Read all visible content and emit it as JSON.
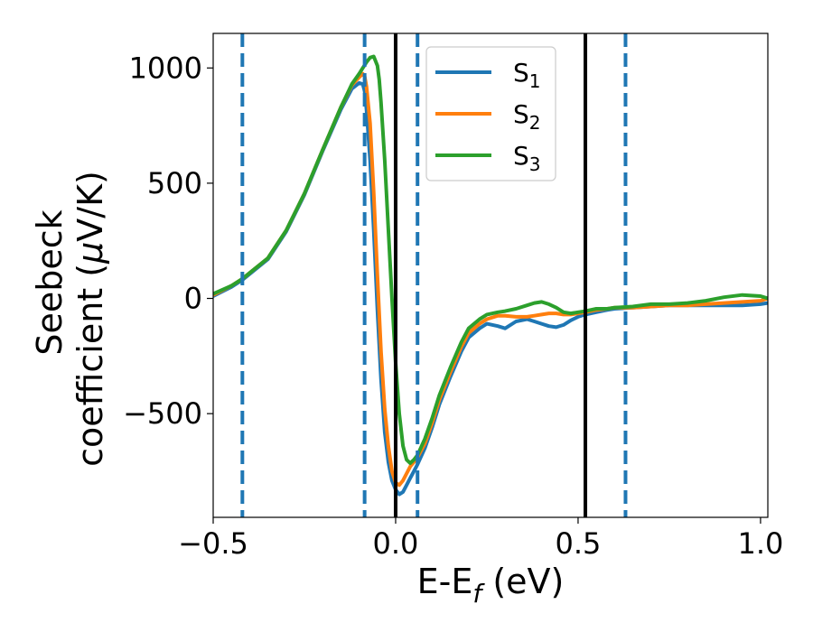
{
  "chart_data": {
    "type": "line",
    "xlabel": "E-E",
    "xlabel_subscript": "f",
    "xlabel_unit": " (eV)",
    "ylabel_line1": "Seebeck",
    "ylabel_line2_prefix": "coefficient  (",
    "ylabel_mu": "μ",
    "ylabel_line2_suffix": "V/K)",
    "xlim": [
      -0.5,
      1.02
    ],
    "ylim": [
      -950,
      1150
    ],
    "xticks": [
      -0.5,
      0.0,
      0.5,
      1.0
    ],
    "xtick_labels": [
      "−0.5",
      "0.0",
      "0.5",
      "1.0"
    ],
    "yticks": [
      -500,
      0,
      500,
      1000
    ],
    "ytick_labels": [
      "−500",
      "0",
      "500",
      "1000"
    ],
    "grid": false,
    "legend_position": "top-right",
    "vertical_lines_solid": [
      0.0,
      0.52
    ],
    "vertical_lines_dashed": [
      -0.42,
      -0.085,
      0.06,
      0.63
    ],
    "colors": {
      "solid_vline": "#000000",
      "dashed_vline": "#1f77b4"
    },
    "series": [
      {
        "base": "S",
        "sub": "1",
        "color": "#1f77b4",
        "x": [
          -0.5,
          -0.45,
          -0.42,
          -0.35,
          -0.3,
          -0.25,
          -0.2,
          -0.15,
          -0.12,
          -0.1,
          -0.09,
          -0.085,
          -0.08,
          -0.07,
          -0.06,
          -0.05,
          -0.04,
          -0.03,
          -0.02,
          -0.01,
          0.0,
          0.01,
          0.02,
          0.03,
          0.04,
          0.05,
          0.06,
          0.08,
          0.1,
          0.12,
          0.15,
          0.18,
          0.2,
          0.23,
          0.25,
          0.28,
          0.3,
          0.33,
          0.36,
          0.38,
          0.4,
          0.42,
          0.44,
          0.46,
          0.48,
          0.5,
          0.52,
          0.55,
          0.58,
          0.6,
          0.65,
          0.7,
          0.75,
          0.8,
          0.85,
          0.9,
          0.95,
          1.0,
          1.02
        ],
        "y": [
          10,
          50,
          80,
          170,
          290,
          450,
          640,
          820,
          910,
          935,
          930,
          900,
          820,
          600,
          300,
          -50,
          -350,
          -580,
          -710,
          -790,
          -830,
          -850,
          -840,
          -810,
          -780,
          -750,
          -720,
          -650,
          -560,
          -460,
          -340,
          -230,
          -170,
          -130,
          -110,
          -120,
          -130,
          -100,
          -90,
          -100,
          -110,
          -120,
          -125,
          -115,
          -95,
          -80,
          -70,
          -60,
          -50,
          -45,
          -40,
          -35,
          -30,
          -30,
          -30,
          -30,
          -30,
          -25,
          -20
        ]
      },
      {
        "base": "S",
        "sub": "2",
        "color": "#ff7f0e",
        "x": [
          -0.5,
          -0.45,
          -0.42,
          -0.35,
          -0.3,
          -0.25,
          -0.2,
          -0.15,
          -0.12,
          -0.1,
          -0.09,
          -0.085,
          -0.08,
          -0.07,
          -0.06,
          -0.05,
          -0.04,
          -0.03,
          -0.02,
          -0.01,
          0.0,
          0.01,
          0.02,
          0.03,
          0.04,
          0.05,
          0.06,
          0.08,
          0.1,
          0.12,
          0.15,
          0.18,
          0.2,
          0.23,
          0.25,
          0.28,
          0.3,
          0.33,
          0.36,
          0.38,
          0.4,
          0.42,
          0.44,
          0.46,
          0.48,
          0.5,
          0.52,
          0.55,
          0.58,
          0.6,
          0.65,
          0.7,
          0.75,
          0.8,
          0.85,
          0.9,
          0.95,
          1.0,
          1.02
        ],
        "y": [
          15,
          55,
          85,
          175,
          295,
          455,
          645,
          830,
          925,
          960,
          975,
          965,
          920,
          760,
          460,
          100,
          -230,
          -480,
          -640,
          -750,
          -800,
          -810,
          -790,
          -760,
          -730,
          -710,
          -690,
          -630,
          -540,
          -440,
          -320,
          -210,
          -150,
          -110,
          -90,
          -75,
          -75,
          -80,
          -80,
          -75,
          -70,
          -65,
          -65,
          -70,
          -70,
          -65,
          -60,
          -50,
          -45,
          -40,
          -40,
          -35,
          -30,
          -30,
          -25,
          -20,
          -15,
          -10,
          0
        ]
      },
      {
        "base": "S",
        "sub": "3",
        "color": "#2ca02c",
        "x": [
          -0.5,
          -0.45,
          -0.42,
          -0.35,
          -0.3,
          -0.25,
          -0.2,
          -0.15,
          -0.12,
          -0.1,
          -0.09,
          -0.08,
          -0.07,
          -0.06,
          -0.05,
          -0.045,
          -0.04,
          -0.03,
          -0.02,
          -0.01,
          0.0,
          0.01,
          0.02,
          0.03,
          0.04,
          0.05,
          0.06,
          0.08,
          0.1,
          0.12,
          0.15,
          0.18,
          0.2,
          0.23,
          0.25,
          0.28,
          0.3,
          0.33,
          0.36,
          0.38,
          0.4,
          0.42,
          0.44,
          0.46,
          0.48,
          0.5,
          0.52,
          0.55,
          0.58,
          0.6,
          0.65,
          0.7,
          0.75,
          0.8,
          0.85,
          0.9,
          0.95,
          1.0,
          1.02
        ],
        "y": [
          20,
          55,
          85,
          175,
          295,
          455,
          645,
          830,
          930,
          975,
          1000,
          1025,
          1045,
          1050,
          1010,
          950,
          850,
          600,
          300,
          0,
          -280,
          -500,
          -640,
          -700,
          -715,
          -700,
          -680,
          -610,
          -520,
          -420,
          -300,
          -190,
          -130,
          -90,
          -70,
          -60,
          -55,
          -45,
          -30,
          -20,
          -15,
          -25,
          -40,
          -60,
          -65,
          -60,
          -55,
          -45,
          -45,
          -40,
          -35,
          -25,
          -25,
          -20,
          -10,
          5,
          15,
          10,
          0
        ]
      }
    ]
  }
}
